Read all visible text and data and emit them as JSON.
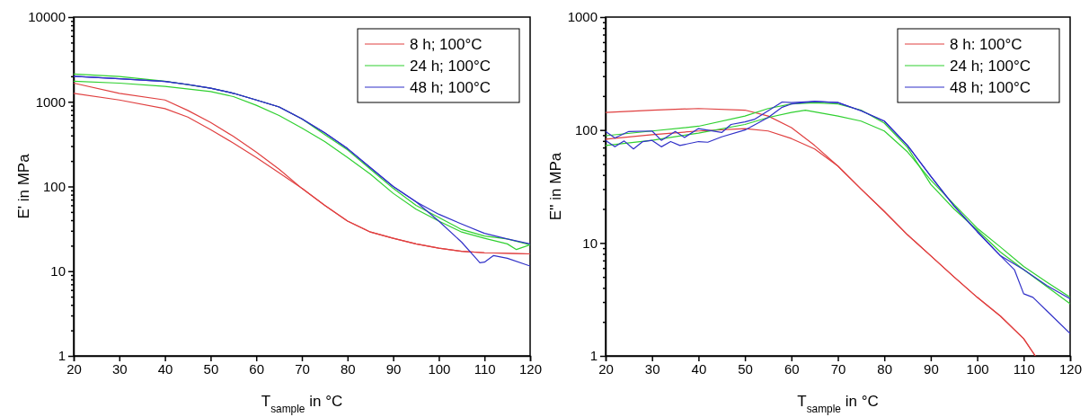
{
  "chart_data": [
    {
      "type": "line",
      "xlabel": "T$_{sample}$ in °C",
      "ylabel": "E' in MPa",
      "log": "y",
      "xlim": [
        20,
        120
      ],
      "xticks": [
        20,
        30,
        40,
        50,
        60,
        70,
        80,
        90,
        100,
        110,
        120
      ],
      "ylim": [
        1,
        10000
      ],
      "yticks": [
        1,
        {
          "value": 2,
          "label": null
        },
        {
          "value": 3,
          "label": null
        },
        {
          "value": 4,
          "label": null
        },
        {
          "value": 5,
          "label": null
        },
        {
          "value": 6,
          "label": null
        },
        {
          "value": 7,
          "label": null
        },
        {
          "value": 8,
          "label": null
        },
        {
          "value": 9,
          "label": null
        },
        10,
        {
          "value": 20,
          "label": null
        },
        {
          "value": 30,
          "label": null
        },
        {
          "value": 40,
          "label": null
        },
        {
          "value": 50,
          "label": null
        },
        {
          "value": 60,
          "label": null
        },
        {
          "value": 70,
          "label": null
        },
        {
          "value": 80,
          "label": null
        },
        {
          "value": 90,
          "label": null
        },
        100,
        {
          "value": 200,
          "label": null
        },
        {
          "value": 300,
          "label": null
        },
        {
          "value": 400,
          "label": null
        },
        {
          "value": 500,
          "label": null
        },
        {
          "value": 600,
          "label": null
        },
        {
          "value": 700,
          "label": null
        },
        {
          "value": 800,
          "label": null
        },
        {
          "value": 900,
          "label": null
        },
        1000,
        {
          "value": 2000,
          "label": null
        },
        {
          "value": 3000,
          "label": null
        },
        {
          "value": 4000,
          "label": null
        },
        {
          "value": 5000,
          "label": null
        },
        {
          "value": 6000,
          "label": null
        },
        {
          "value": 7000,
          "label": null
        },
        {
          "value": 8000,
          "label": null
        },
        {
          "value": 9000,
          "label": null
        },
        10000
      ],
      "grid": false,
      "legend": "top right",
      "marker": "none",
      "line_style": "solid",
      "series": [
        {
          "name": "8 h; 100°C",
          "color": "#e04040",
          "x": [
            20,
            30,
            40,
            45,
            50,
            55,
            60,
            65,
            70,
            75,
            80,
            85,
            90,
            95,
            100,
            105,
            110,
            120
          ],
          "values": [
            1660,
            1260,
            1050,
            790,
            570,
            390,
            255,
            160,
            95,
            60,
            39,
            29,
            24.5,
            21,
            18.7,
            17.2,
            16.5,
            16
          ]
        },
        {
          "color": "#e04040",
          "x": [
            20,
            30,
            40,
            45,
            50,
            55,
            60,
            65,
            70,
            75,
            80,
            85,
            90,
            95,
            100,
            105,
            110,
            120
          ],
          "values": [
            1260,
            1050,
            830,
            660,
            470,
            325,
            220,
            145,
            95,
            60,
            39,
            29,
            24.5,
            21,
            18.7,
            17.2,
            16.5,
            16
          ]
        },
        {
          "name": "24 h; 100°C",
          "color": "#30d030",
          "x": [
            20,
            30,
            40,
            50,
            55,
            60,
            65,
            70,
            75,
            80,
            85,
            90,
            95,
            100,
            105,
            110,
            115,
            120
          ],
          "values": [
            2130,
            1990,
            1750,
            1450,
            1260,
            1050,
            870,
            630,
            410,
            270,
            160,
            95,
            60,
            43,
            31,
            26,
            24,
            20.5
          ]
        },
        {
          "color": "#30d030",
          "x": [
            20,
            30,
            40,
            50,
            55,
            60,
            65,
            70,
            75,
            80,
            85,
            90,
            95,
            100,
            105,
            110,
            115,
            117,
            120
          ],
          "values": [
            1750,
            1660,
            1520,
            1320,
            1150,
            910,
            690,
            490,
            340,
            220,
            140,
            83,
            54,
            39,
            29,
            24.5,
            21,
            18,
            20.5
          ]
        },
        {
          "name": "48 h; 100°C",
          "color": "#3030c8",
          "x": [
            20,
            30,
            40,
            45,
            50,
            55,
            60,
            65,
            70,
            75,
            80,
            85,
            90,
            95,
            100,
            105,
            110,
            115,
            120
          ],
          "values": [
            2000,
            1870,
            1740,
            1600,
            1450,
            1260,
            1050,
            870,
            630,
            430,
            280,
            167,
            100,
            66,
            47,
            36,
            28,
            24,
            21
          ]
        },
        {
          "color": "#3030c8",
          "x": [
            20,
            30,
            40,
            45,
            50,
            55,
            60,
            65,
            70,
            75,
            80,
            85,
            90,
            95,
            100,
            105,
            108,
            109,
            110,
            112,
            115,
            120
          ],
          "values": [
            2000,
            1870,
            1740,
            1600,
            1450,
            1260,
            1050,
            870,
            630,
            430,
            280,
            167,
            100,
            66,
            39,
            22,
            14.5,
            12.6,
            12.8,
            15.3,
            14.2,
            11.5
          ]
        }
      ]
    },
    {
      "type": "line",
      "xlabel": "T$_{sample}$ in °C",
      "ylabel": "E'' in MPa",
      "log": "y",
      "xlim": [
        20,
        120
      ],
      "xticks": [
        20,
        30,
        40,
        50,
        60,
        70,
        80,
        90,
        100,
        110,
        120
      ],
      "ylim": [
        1,
        1000
      ],
      "yticks": [
        1,
        {
          "value": 2,
          "label": null
        },
        {
          "value": 3,
          "label": null
        },
        {
          "value": 4,
          "label": null
        },
        {
          "value": 5,
          "label": null
        },
        {
          "value": 6,
          "label": null
        },
        {
          "value": 7,
          "label": null
        },
        {
          "value": 8,
          "label": null
        },
        {
          "value": 9,
          "label": null
        },
        10,
        {
          "value": 20,
          "label": null
        },
        {
          "value": 30,
          "label": null
        },
        {
          "value": 40,
          "label": null
        },
        {
          "value": 50,
          "label": null
        },
        {
          "value": 60,
          "label": null
        },
        {
          "value": 70,
          "label": null
        },
        {
          "value": 80,
          "label": null
        },
        {
          "value": 90,
          "label": null
        },
        100,
        {
          "value": 200,
          "label": null
        },
        {
          "value": 300,
          "label": null
        },
        {
          "value": 400,
          "label": null
        },
        {
          "value": 500,
          "label": null
        },
        {
          "value": 600,
          "label": null
        },
        {
          "value": 700,
          "label": null
        },
        {
          "value": 800,
          "label": null
        },
        {
          "value": 900,
          "label": null
        },
        1000
      ],
      "grid": false,
      "legend": "top right",
      "marker": "none",
      "line_style": "solid",
      "series": [
        {
          "name": "8 h: 100°C",
          "color": "#e04040",
          "x": [
            20,
            30,
            40,
            50,
            55,
            60,
            65,
            70,
            75,
            80,
            85,
            90,
            95,
            100,
            105,
            110,
            112.5
          ],
          "values": [
            143,
            150,
            155,
            150,
            133,
            105,
            73,
            48,
            30,
            19,
            11.8,
            7.7,
            5,
            3.3,
            2.25,
            1.42,
            1
          ]
        },
        {
          "color": "#e04040",
          "x": [
            20,
            30,
            40,
            50,
            55,
            60,
            65,
            70,
            75,
            80,
            85,
            90,
            95,
            100,
            105,
            110,
            112.5
          ],
          "values": [
            83,
            91,
            98,
            103,
            98,
            84,
            68,
            48,
            30,
            19,
            11.8,
            7.7,
            5,
            3.3,
            2.25,
            1.42,
            1
          ]
        },
        {
          "name": "24 h; 100°C",
          "color": "#30d030",
          "x": [
            20,
            30,
            40,
            50,
            55,
            60,
            65,
            70,
            75,
            80,
            85,
            90,
            95,
            100,
            105,
            110,
            115,
            120
          ],
          "values": [
            89,
            98,
            108,
            133,
            155,
            170,
            174,
            170,
            150,
            115,
            70,
            33,
            20,
            13,
            8.3,
            5.8,
            4.1,
            2.9
          ]
        },
        {
          "color": "#30d030",
          "x": [
            20,
            30,
            40,
            50,
            55,
            60,
            63,
            70,
            75,
            80,
            85,
            90,
            95,
            100,
            105,
            110,
            115,
            120
          ],
          "values": [
            73,
            81,
            94,
            112,
            129,
            143,
            150,
            133,
            120,
            98,
            64,
            36,
            22,
            13.5,
            9.2,
            6.2,
            4.5,
            3.3
          ]
        },
        {
          "name": "48 h; 100°C",
          "color": "#3030c8",
          "x": [
            20,
            22,
            25,
            30,
            32,
            35,
            37,
            40,
            45,
            47,
            50,
            52,
            55,
            58,
            60,
            65,
            70,
            75,
            80,
            85,
            90,
            95,
            100,
            105,
            108,
            110,
            112,
            115,
            120
          ],
          "values": [
            97,
            85,
            97,
            98,
            81,
            97,
            86,
            103,
            95,
            112,
            118,
            124,
            148,
            177,
            175,
            179,
            175,
            148,
            120,
            73,
            39,
            21.3,
            12.6,
            7.7,
            5.8,
            3.55,
            3.3,
            2.5,
            1.58
          ]
        },
        {
          "color": "#3030c8",
          "x": [
            20,
            22,
            24,
            26,
            28,
            30,
            32,
            34,
            36,
            40,
            42,
            45,
            50,
            55,
            58,
            60,
            65,
            70,
            75,
            80,
            85,
            90,
            95,
            100,
            105,
            110,
            115,
            120
          ],
          "values": [
            81,
            71,
            80,
            68,
            79,
            81,
            71,
            79,
            73,
            79,
            78,
            87,
            100,
            129,
            159,
            170,
            179,
            175,
            148,
            120,
            73,
            39,
            21.3,
            12.6,
            7.7,
            5.8,
            4.2,
            3.2
          ]
        }
      ]
    }
  ]
}
